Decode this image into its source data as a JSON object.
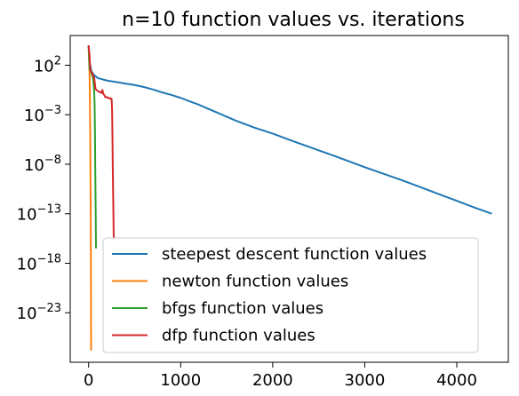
{
  "chart_data": {
    "type": "line",
    "title": "n=10 function values vs. iterations",
    "xlabel": "",
    "ylabel": "",
    "y_scale": "log",
    "xlim": [
      -200,
      4560
    ],
    "ylim_exponent": [
      -28,
      5
    ],
    "x_ticks": [
      0,
      1000,
      2000,
      3000,
      4000
    ],
    "x_tick_labels": [
      "0",
      "1000",
      "2000",
      "3000",
      "4000"
    ],
    "y_ticks_exponent": [
      2,
      -3,
      -8,
      -13,
      -18,
      -23
    ],
    "y_tick_bases": [
      "10",
      "10",
      "10",
      "10",
      "10",
      "10"
    ],
    "y_tick_exponents": [
      "2",
      "−3",
      "−8",
      "−13",
      "−18",
      "−23"
    ],
    "grid": false,
    "legend_position": "lower-right",
    "series": [
      {
        "name": "steepest descent function values",
        "color": "#1f77b4",
        "x": [
          0,
          5,
          10,
          30,
          60,
          100,
          200,
          300,
          400,
          500,
          600,
          700,
          800,
          900,
          1000,
          1100,
          1200,
          1300,
          1400,
          1500,
          1600,
          1800,
          2000,
          2200,
          2500,
          2800,
          3000,
          3200,
          3400,
          3600,
          3800,
          4000,
          4200,
          4380
        ],
        "log10_y": [
          4.0,
          3.0,
          2.4,
          1.4,
          1.0,
          0.7,
          0.45,
          0.3,
          0.15,
          0.0,
          -0.2,
          -0.45,
          -0.75,
          -1.0,
          -1.3,
          -1.65,
          -2.0,
          -2.4,
          -2.8,
          -3.2,
          -3.6,
          -4.3,
          -4.9,
          -5.6,
          -6.6,
          -7.6,
          -8.3,
          -8.95,
          -9.6,
          -10.3,
          -11.0,
          -11.7,
          -12.4,
          -13.0
        ]
      },
      {
        "name": "newton function values",
        "color": "#ff7f0e",
        "x": [
          0,
          2,
          5,
          8,
          11,
          14,
          17,
          20,
          23,
          25,
          26,
          27
        ],
        "log10_y": [
          4.0,
          3.2,
          2.5,
          1.8,
          0.8,
          -1.5,
          -4.5,
          -8.5,
          -13.5,
          -19.0,
          -23.0,
          -26.8
        ]
      },
      {
        "name": "bfgs function values",
        "color": "#2ca02c",
        "x": [
          0,
          5,
          10,
          20,
          30,
          40,
          50,
          60,
          65,
          68,
          70,
          72,
          75,
          78,
          80
        ],
        "log10_y": [
          4.0,
          2.8,
          1.6,
          1.4,
          1.2,
          1.0,
          0.5,
          -0.5,
          -2.0,
          -4.0,
          -6.0,
          -8.5,
          -11.0,
          -14.0,
          -16.5
        ]
      },
      {
        "name": "dfp function values",
        "color": "#d62728",
        "x": [
          0,
          5,
          10,
          15,
          20,
          25,
          30,
          40,
          45,
          50,
          60,
          70,
          75,
          100,
          120,
          140,
          150,
          160,
          170,
          180,
          190,
          200,
          210,
          220,
          230,
          240,
          250,
          255,
          258,
          260,
          262,
          265,
          268,
          270,
          272,
          275
        ],
        "log10_y": [
          4.0,
          3.5,
          3.0,
          2.0,
          1.5,
          1.4,
          1.3,
          1.2,
          1.0,
          0.9,
          0.8,
          0.0,
          -0.4,
          -0.6,
          -0.7,
          -0.8,
          -0.5,
          -0.9,
          -1.0,
          -1.2,
          -1.2,
          -1.3,
          -1.25,
          -1.3,
          -1.4,
          -1.35,
          -1.4,
          -2.5,
          -4.5,
          -6.0,
          -8.0,
          -10.0,
          -12.0,
          -13.5,
          -15.0,
          -15.5
        ]
      }
    ]
  }
}
